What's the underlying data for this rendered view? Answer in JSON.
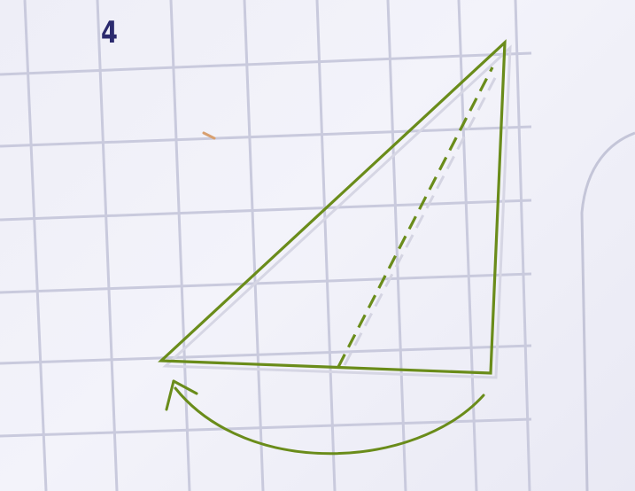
{
  "step": {
    "number": "4"
  },
  "colors": {
    "paper": "#f0f0f8",
    "grid_line": "#c7c8dc",
    "fold_line": "#6a8c1a",
    "step_number": "#2b2a6e"
  },
  "icons": {
    "fold_arrow": "curved-arrow-icon"
  }
}
